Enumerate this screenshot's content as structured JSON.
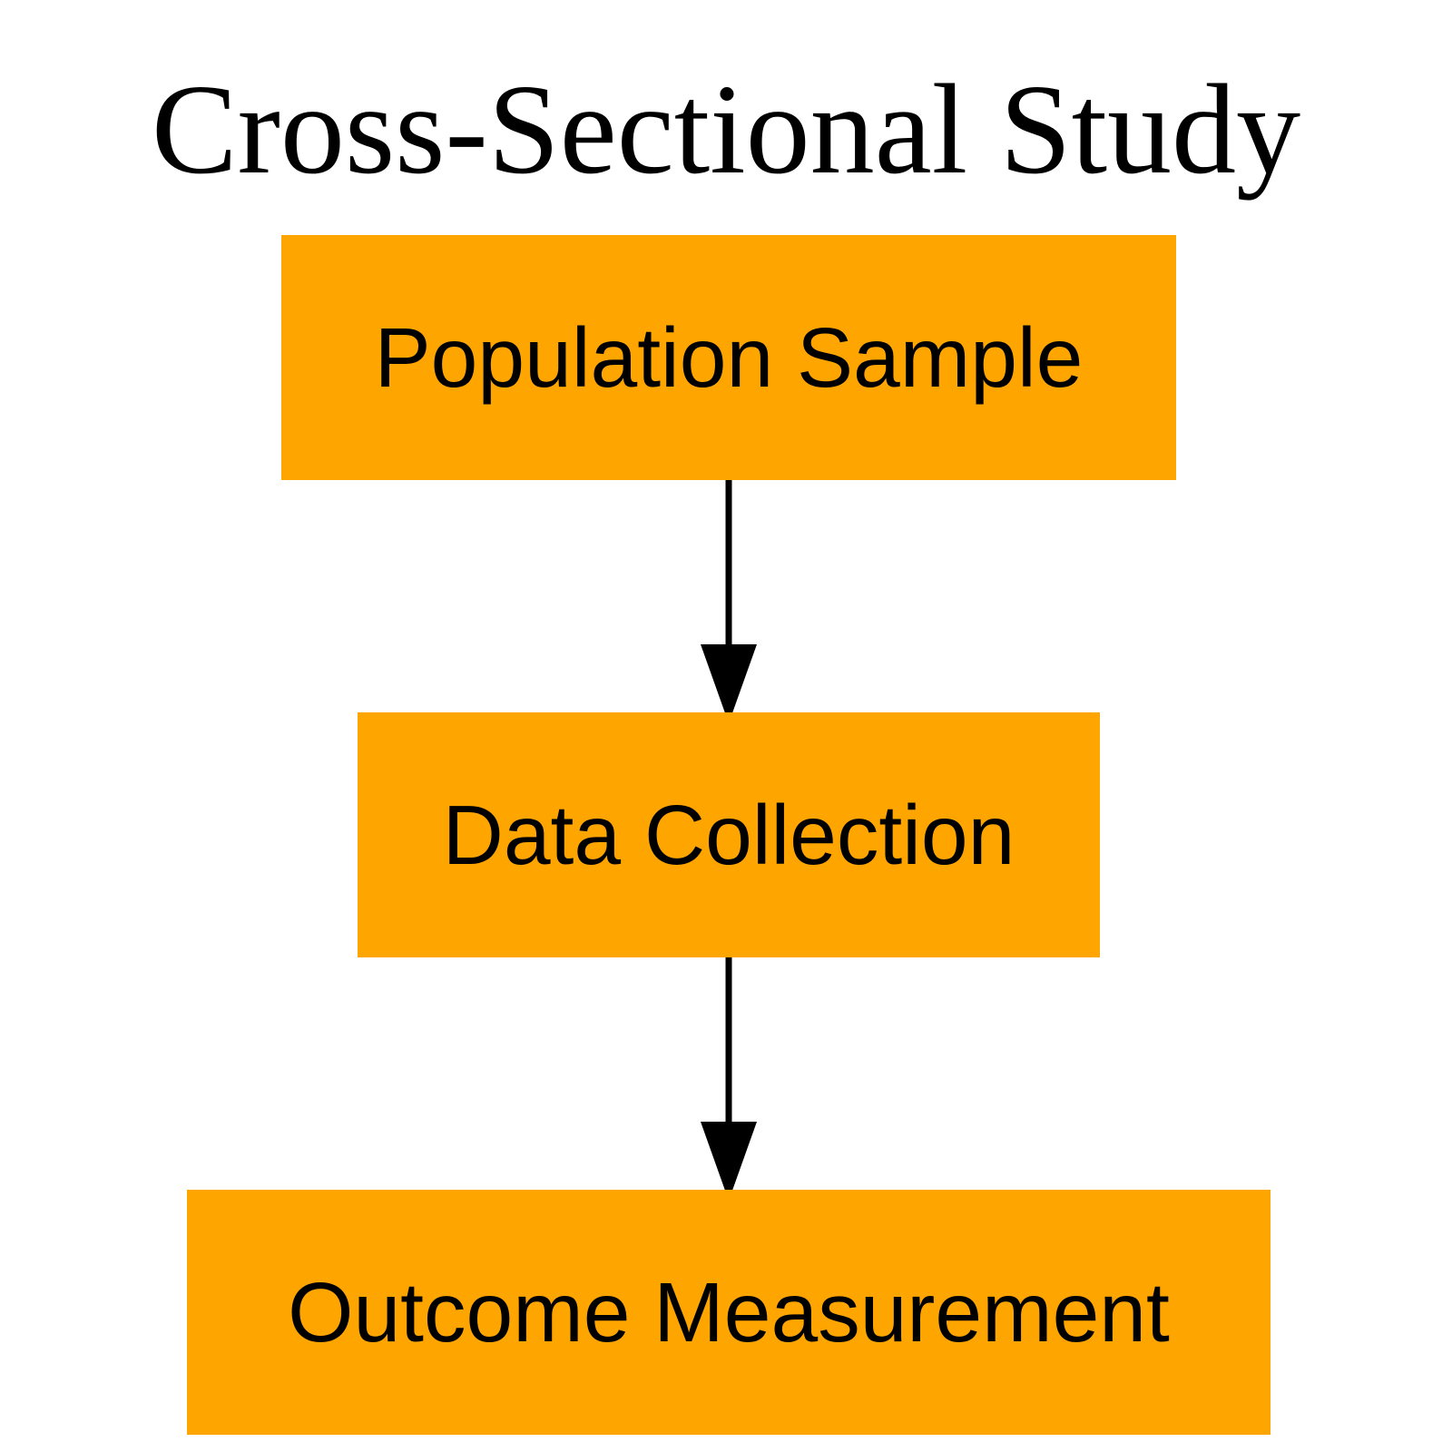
{
  "diagram": {
    "title": "Cross-Sectional Study",
    "node_color": "#FFA500",
    "text_color": "#000000",
    "edge_color": "#000000",
    "nodes": [
      {
        "id": "population-sample",
        "label": "Population Sample"
      },
      {
        "id": "data-collection",
        "label": "Data Collection"
      },
      {
        "id": "outcome-measurement",
        "label": "Outcome Measurement"
      }
    ],
    "edges": [
      {
        "from": "population-sample",
        "to": "data-collection"
      },
      {
        "from": "data-collection",
        "to": "outcome-measurement"
      }
    ]
  }
}
